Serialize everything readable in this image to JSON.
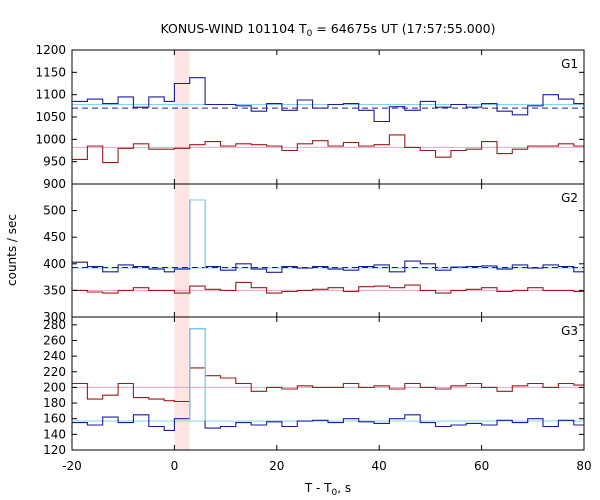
{
  "title": {
    "instrument_prefix": "KONUS-WIND 101104 T",
    "subscript": "0",
    "suffix": " = 64675s UT (17:57:55.000)"
  },
  "x_axis": {
    "label_prefix": "T - T",
    "label_sub": "0",
    "label_suffix": ", s",
    "ticks": [
      -20,
      0,
      20,
      40,
      60,
      80
    ],
    "range": [
      -20,
      80
    ]
  },
  "y_axis_label": "counts / sec",
  "highlight": {
    "x_start": 0,
    "x_end": 2.944,
    "color": "#ffe4e4"
  },
  "colors": {
    "hist_a": "#1c1c9c",
    "bg_a": "#7fd7ef",
    "hist_b": "#9c1c1c",
    "bg_b": "#f5a0c8",
    "burst": "#7fd7ef"
  },
  "chart_data": {
    "type": "line",
    "bin_edges": [
      -20,
      -17,
      -14,
      -11,
      -8,
      -5,
      -2,
      0,
      3,
      6,
      9,
      12,
      15,
      18,
      21,
      24,
      27,
      30,
      33,
      36,
      39,
      42,
      45,
      48,
      51,
      54,
      57,
      60,
      63,
      66,
      69,
      72,
      75,
      78,
      80
    ],
    "panels": [
      {
        "label": "G1",
        "ylim": [
          900,
          1200
        ],
        "yticks": [
          900,
          950,
          1000,
          1050,
          1100,
          1150,
          1200
        ],
        "series": [
          {
            "values": [
              1085,
              1090,
              1080,
              1095,
              1072,
              1095,
              1085,
              1125,
              1138,
              1078,
              1078,
              1075,
              1063,
              1080,
              1065,
              1088,
              1070,
              1078,
              1080,
              1065,
              1040,
              1073,
              1065,
              1085,
              1072,
              1078,
              1072,
              1080,
              1063,
              1055,
              1075,
              1100,
              1090,
              1080
            ],
            "color_key": "hist_a"
          },
          {
            "values": [
              955,
              985,
              948,
              980,
              990,
              978,
              978,
              980,
              988,
              995,
              985,
              990,
              988,
              985,
              975,
              990,
              997,
              985,
              993,
              985,
              988,
              1010,
              982,
              975,
              960,
              975,
              978,
              995,
              968,
              978,
              985,
              985,
              990,
              985
            ],
            "color_key": "hist_b"
          }
        ],
        "bg_lines": [
          {
            "value": 1078,
            "color_key": "bg_a",
            "dashed": false
          },
          {
            "value": 1070,
            "color_key": "hist_a",
            "dashed": true
          },
          {
            "value": 982,
            "color_key": "bg_b",
            "dashed": false
          }
        ]
      },
      {
        "label": "G2",
        "ylim": [
          300,
          550
        ],
        "yticks": [
          300,
          350,
          400,
          450,
          500
        ],
        "series": [
          {
            "values": [
              403,
              395,
              385,
              398,
              395,
              390,
              385,
              390,
              520,
              395,
              388,
              400,
              390,
              384,
              395,
              392,
              395,
              390,
              388,
              395,
              398,
              385,
              405,
              400,
              388,
              394,
              395,
              396,
              390,
              398,
              392,
              398,
              395,
              385
            ],
            "color_key": "hist_a"
          },
          {
            "values": [
              350,
              347,
              345,
              350,
              355,
              350,
              350,
              345,
              358,
              352,
              350,
              365,
              355,
              345,
              348,
              350,
              352,
              355,
              348,
              357,
              358,
              355,
              360,
              350,
              345,
              350,
              352,
              355,
              348,
              350,
              355,
              350,
              350,
              348
            ],
            "color_key": "hist_b"
          }
        ],
        "bg_lines": [
          {
            "value": 392,
            "color_key": "bg_a",
            "dashed": false
          },
          {
            "value": 393,
            "color_key": "hist_a",
            "dashed": true
          },
          {
            "value": 350,
            "color_key": "bg_b",
            "dashed": false
          }
        ]
      },
      {
        "label": "G3",
        "ylim": [
          120,
          290
        ],
        "yticks": [
          120,
          140,
          160,
          180,
          200,
          220,
          240,
          260,
          280
        ],
        "series": [
          {
            "values": [
              155,
              152,
              162,
              155,
              165,
              150,
              145,
              160,
              275,
              148,
              150,
              155,
              152,
              156,
              150,
              157,
              158,
              155,
              160,
              156,
              154,
              160,
              165,
              155,
              150,
              152,
              154,
              152,
              158,
              155,
              160,
              150,
              158,
              152
            ],
            "color_key": "hist_a"
          },
          {
            "values": [
              205,
              185,
              190,
              205,
              187,
              185,
              183,
              182,
              225,
              215,
              212,
              205,
              195,
              200,
              198,
              202,
              200,
              200,
              205,
              200,
              202,
              198,
              205,
              200,
              198,
              202,
              205,
              200,
              195,
              202,
              205,
              200,
              205,
              203
            ],
            "color_key": "hist_b"
          }
        ],
        "bg_lines": [
          {
            "value": 157,
            "color_key": "bg_a",
            "dashed": false
          },
          {
            "value": 200,
            "color_key": "bg_b",
            "dashed": false
          }
        ]
      }
    ]
  }
}
